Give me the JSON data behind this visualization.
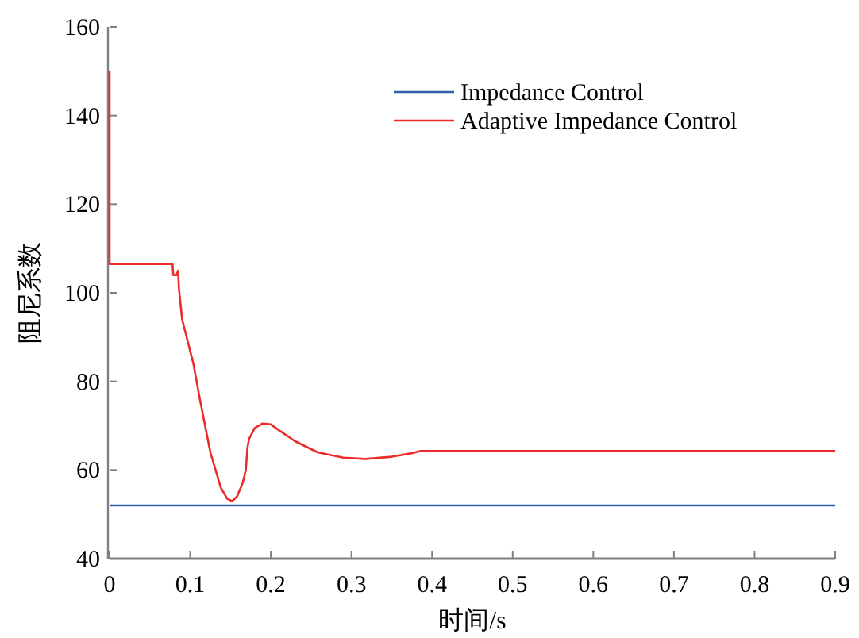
{
  "chart_data": {
    "type": "line",
    "xlabel": "时间/s",
    "ylabel": "阻尼系数",
    "xlim": [
      0,
      0.9
    ],
    "ylim": [
      40,
      160
    ],
    "xticks": [
      0,
      0.1,
      0.2,
      0.3,
      0.4,
      0.5,
      0.6,
      0.7,
      0.8,
      0.9
    ],
    "yticks": [
      40,
      60,
      80,
      100,
      120,
      140,
      160
    ],
    "legend": "top right",
    "grid": false,
    "series": [
      {
        "name": "Impedance Control",
        "color": "#2e5fa8",
        "x": [
          0,
          0.9
        ],
        "values": [
          52,
          52
        ]
      },
      {
        "name": "Adaptive Impedance Control",
        "color": "#ee2b2b",
        "x": [
          0,
          0,
          0.078,
          0.079,
          0.083,
          0.085,
          0.086,
          0.09,
          0.097,
          0.104,
          0.112,
          0.125,
          0.138,
          0.146,
          0.152,
          0.158,
          0.165,
          0.169,
          0.171,
          0.173,
          0.18,
          0.19,
          0.2,
          0.21,
          0.23,
          0.258,
          0.29,
          0.317,
          0.35,
          0.375,
          0.386,
          0.5,
          0.7,
          0.9
        ],
        "values": [
          150,
          106.5,
          106.5,
          104,
          104,
          105,
          101,
          94,
          89,
          84,
          76,
          64,
          56,
          53.5,
          53,
          54,
          57,
          60,
          65,
          67,
          69.5,
          70.5,
          70.3,
          69,
          66.5,
          64,
          62.8,
          62.5,
          63,
          63.8,
          64.3,
          64.3,
          64.3,
          64.3
        ]
      }
    ]
  }
}
